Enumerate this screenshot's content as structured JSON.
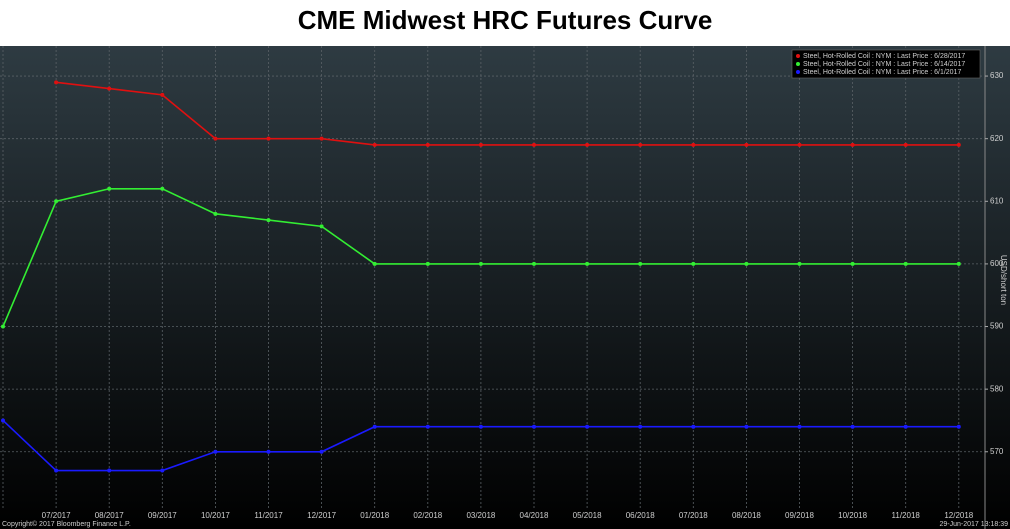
{
  "chart_data": {
    "type": "line",
    "title": "CME Midwest HRC Futures Curve",
    "y_label": "USD/short ton",
    "categories": [
      null,
      "07/2017",
      "08/2017",
      "09/2017",
      "10/2017",
      "11/2017",
      "12/2017",
      "01/2018",
      "02/2018",
      "03/2018",
      "04/2018",
      "05/2018",
      "06/2018",
      "07/2018",
      "08/2018",
      "09/2018",
      "10/2018",
      "11/2018",
      "12/2018"
    ],
    "series": [
      {
        "name": "Steel, Hot-Rolled Coil : NYM : Last Price : 6/28/2017",
        "color": "#e01010",
        "values": [
          null,
          629,
          628,
          627,
          620,
          620,
          620,
          619,
          619,
          619,
          619,
          619,
          619,
          619,
          619,
          619,
          619,
          619,
          619
        ]
      },
      {
        "name": "Steel, Hot-Rolled Coil : NYM : Last Price : 6/14/2017",
        "color": "#33ee33",
        "values": [
          590,
          610,
          612,
          612,
          608,
          607,
          606,
          600,
          600,
          600,
          600,
          600,
          600,
          600,
          600,
          600,
          600,
          600,
          600
        ]
      },
      {
        "name": "Steel, Hot-Rolled Coil : NYM : Last Price : 6/1/2017",
        "color": "#1a1aff",
        "values": [
          575,
          567,
          567,
          567,
          570,
          570,
          570,
          574,
          574,
          574,
          574,
          574,
          574,
          574,
          574,
          574,
          574,
          574,
          574
        ]
      }
    ],
    "ylim": [
      560.7,
      634.8
    ],
    "yticks": [
      570,
      580,
      590,
      600,
      610,
      620,
      630
    ],
    "grid": true,
    "legend": "top-right",
    "footer_left": "Copyright© 2017 Bloomberg Finance L.P.",
    "footer_right": "29-Jun-2017 13:18:39"
  }
}
